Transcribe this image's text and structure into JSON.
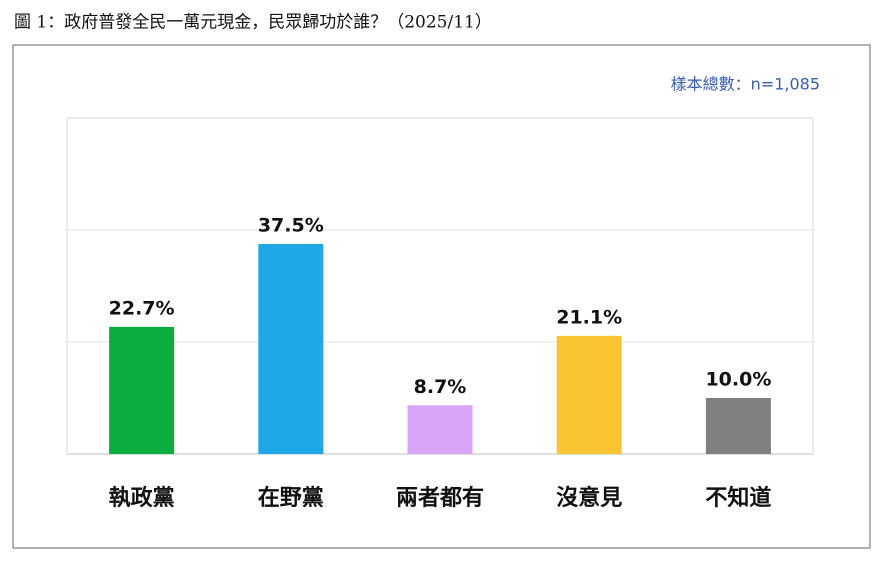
{
  "chart_data": {
    "type": "bar",
    "title": "圖 1：政府普發全民一萬元現金，民眾歸功於誰？（2025/11）",
    "annotation": "樣本總數：n=1,085",
    "categories": [
      "執政黨",
      "在野黨",
      "兩者都有",
      "沒意見",
      "不知道"
    ],
    "values": [
      22.7,
      37.5,
      8.7,
      21.1,
      10.0
    ],
    "value_labels": [
      "22.7%",
      "37.5%",
      "8.7%",
      "21.1%",
      "10.0%"
    ],
    "colors": [
      "#0aae3f",
      "#1fa8e9",
      "#d8a5f6",
      "#fbc433",
      "#808080"
    ],
    "ylim": [
      0,
      60
    ],
    "gridlines": [
      20,
      40
    ]
  }
}
